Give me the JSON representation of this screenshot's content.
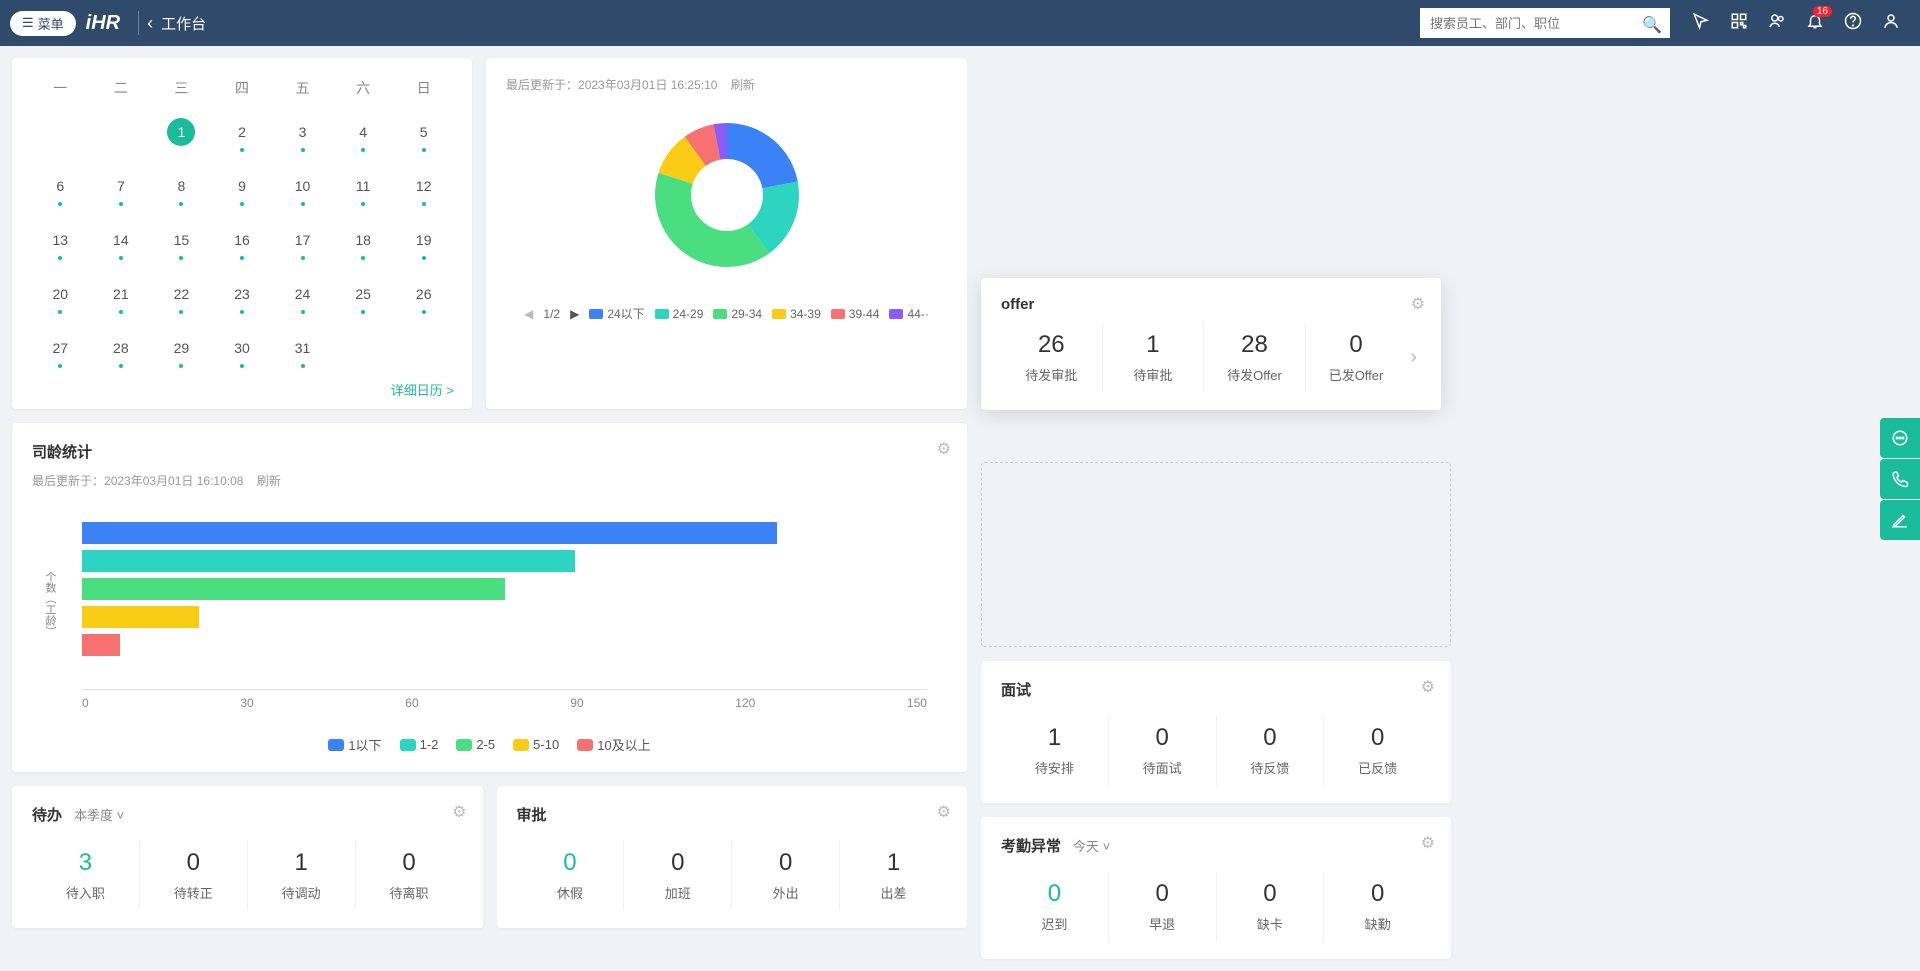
{
  "header": {
    "menu_label": "菜单",
    "logo": "iHR",
    "page_title": "工作台",
    "search_placeholder": "搜索员工、部门、职位",
    "notification_count": "16"
  },
  "calendar": {
    "weekdays": [
      "一",
      "二",
      "三",
      "四",
      "五",
      "六",
      "日"
    ],
    "days": [
      {
        "n": "",
        "dot": ""
      },
      {
        "n": "",
        "dot": ""
      },
      {
        "n": "1",
        "dot": "",
        "today": true
      },
      {
        "n": "2",
        "dot": "#1abc9c"
      },
      {
        "n": "3",
        "dot": "#1abc9c"
      },
      {
        "n": "4",
        "dot": "#1abc9c"
      },
      {
        "n": "5",
        "dot": "#1abc9c"
      },
      {
        "n": "6",
        "dot": "#1abc9c"
      },
      {
        "n": "7",
        "dot": "#1abc9c"
      },
      {
        "n": "8",
        "dot": "#1abc9c"
      },
      {
        "n": "9",
        "dot": "#1abc9c"
      },
      {
        "n": "10",
        "dot": "#1abc9c"
      },
      {
        "n": "11",
        "dot": "#1abc9c"
      },
      {
        "n": "12",
        "dot": "#1abc9c"
      },
      {
        "n": "13",
        "dot": "#1abc9c"
      },
      {
        "n": "14",
        "dot": "#1abc9c"
      },
      {
        "n": "15",
        "dot": "#1abc9c"
      },
      {
        "n": "16",
        "dot": "#1abc9c"
      },
      {
        "n": "17",
        "dot": "#1abc9c"
      },
      {
        "n": "18",
        "dot": "#1abc9c"
      },
      {
        "n": "19",
        "dot": "#1abc9c"
      },
      {
        "n": "20",
        "dot": "#1abc9c"
      },
      {
        "n": "21",
        "dot": "#1abc9c"
      },
      {
        "n": "22",
        "dot": "#1abc9c"
      },
      {
        "n": "23",
        "dot": "#1abc9c"
      },
      {
        "n": "24",
        "dot": "#1abc9c"
      },
      {
        "n": "25",
        "dot": "#1abc9c"
      },
      {
        "n": "26",
        "dot": "#1abc9c"
      },
      {
        "n": "27",
        "dot": "#1abc9c"
      },
      {
        "n": "28",
        "dot": "#1abc9c"
      },
      {
        "n": "29",
        "dot": "#1abc9c"
      },
      {
        "n": "30",
        "dot": "#1abc9c"
      },
      {
        "n": "31",
        "dot": "#1abc9c"
      },
      {
        "n": "",
        "dot": ""
      },
      {
        "n": "",
        "dot": ""
      }
    ],
    "detail_link": "详细日历 >"
  },
  "donut": {
    "update_prefix": "最后更新于：",
    "update_time": "2023年03月01日 16:25:10",
    "refresh": "刷新",
    "page": "1/2",
    "slices": [
      {
        "label": "24以下",
        "color": "#3b82f6",
        "pct": 22
      },
      {
        "label": "24-29",
        "color": "#2dd4bf",
        "pct": 18
      },
      {
        "label": "29-34",
        "color": "#4ade80",
        "pct": 40
      },
      {
        "label": "34-39",
        "color": "#facc15",
        "pct": 10
      },
      {
        "label": "39-44",
        "color": "#f87171",
        "pct": 7
      },
      {
        "label": "44-·",
        "color": "#8b5cf6",
        "pct": 3
      }
    ],
    "inner_color": "#ffffff",
    "size": 180,
    "thickness": 36
  },
  "tenure": {
    "title": "司龄统计",
    "update_prefix": "最后更新于：",
    "update_time": "2023年03月01日 16:10:08",
    "refresh": "刷新",
    "y_label": "个数（工龄）",
    "x_ticks": [
      "0",
      "30",
      "60",
      "90",
      "120",
      "150"
    ],
    "x_max": 180,
    "bars": [
      {
        "label": "1以下",
        "value": 148,
        "color": "#3b82f6"
      },
      {
        "label": "1-2",
        "value": 105,
        "color": "#2dd4bf"
      },
      {
        "label": "2-5",
        "value": 90,
        "color": "#4ade80"
      },
      {
        "label": "5-10",
        "value": 25,
        "color": "#facc15"
      },
      {
        "label": "10及以上",
        "value": 8,
        "color": "#f87171"
      }
    ]
  },
  "offer": {
    "title": "offer",
    "items": [
      {
        "num": "26",
        "label": "待发审批"
      },
      {
        "num": "1",
        "label": "待审批"
      },
      {
        "num": "28",
        "label": "待发Offer"
      },
      {
        "num": "0",
        "label": "已发Offer"
      }
    ]
  },
  "interview": {
    "title": "面试",
    "items": [
      {
        "num": "1",
        "label": "待安排"
      },
      {
        "num": "0",
        "label": "待面试"
      },
      {
        "num": "0",
        "label": "待反馈"
      },
      {
        "num": "0",
        "label": "已反馈"
      }
    ]
  },
  "todo": {
    "title": "待办",
    "filter": "本季度",
    "items": [
      {
        "num": "3",
        "label": "待入职",
        "hl": true
      },
      {
        "num": "0",
        "label": "待转正"
      },
      {
        "num": "1",
        "label": "待调动"
      },
      {
        "num": "0",
        "label": "待离职"
      }
    ]
  },
  "approval": {
    "title": "审批",
    "items": [
      {
        "num": "0",
        "label": "休假",
        "hl": true
      },
      {
        "num": "0",
        "label": "加班"
      },
      {
        "num": "0",
        "label": "外出"
      },
      {
        "num": "1",
        "label": "出差"
      }
    ]
  },
  "attendance": {
    "title": "考勤异常",
    "filter": "今天",
    "items": [
      {
        "num": "0",
        "label": "迟到",
        "hl": true
      },
      {
        "num": "0",
        "label": "早退"
      },
      {
        "num": "0",
        "label": "缺卡"
      },
      {
        "num": "0",
        "label": "缺勤"
      }
    ]
  }
}
